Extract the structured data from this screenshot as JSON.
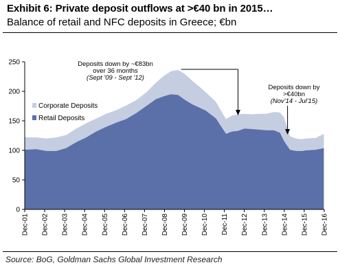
{
  "title": "Exhibit 6: Private deposit outflows at >€40 bn in 2015…",
  "subtitle": "Balance of retail and NFC deposits in Greece; €bn",
  "source": "Source: BoG, Goldman Sachs Global Investment Research",
  "chart_data": {
    "type": "area",
    "stacked": true,
    "ylim": [
      0,
      250
    ],
    "yticks": [
      0,
      50,
      100,
      150,
      200,
      250
    ],
    "xlim": [
      2001.917,
      2016.917
    ],
    "xtick_labels": [
      "Dec-01",
      "Dec-02",
      "Dec-03",
      "Dec-04",
      "Dec-05",
      "Dec-06",
      "Dec-07",
      "Dec-08",
      "Dec-09",
      "Dec-10",
      "Dec-11",
      "Dec-12",
      "Dec-13",
      "Dec-14",
      "Dec-15",
      "Dec-16"
    ],
    "legend": {
      "position": "left",
      "entries": [
        "Corporate Deposits",
        "Retail Deposits"
      ]
    },
    "colors": {
      "retail": "#5b70a8",
      "corporate": "#c5cde1",
      "axis": "#000000"
    },
    "series": [
      {
        "name": "Retail Deposits",
        "x": [
          2001.917,
          2002.5,
          2003.0,
          2003.5,
          2004.0,
          2004.5,
          2005.0,
          2005.5,
          2006.0,
          2006.5,
          2007.0,
          2007.5,
          2008.0,
          2008.5,
          2008.917,
          2009.25,
          2009.6,
          2009.917,
          2010.3,
          2010.7,
          2011.0,
          2011.5,
          2011.8,
          2012.0,
          2012.3,
          2012.6,
          2012.917,
          2013.3,
          2013.7,
          2014.0,
          2014.4,
          2014.7,
          2014.9,
          2015.2,
          2015.5,
          2015.8,
          2016.0,
          2016.5,
          2016.9
        ],
        "values": [
          101,
          102,
          99,
          99,
          104,
          114,
          122,
          132,
          140,
          147,
          153,
          163,
          175,
          187,
          192,
          195,
          194,
          186,
          178,
          172,
          167,
          154,
          138,
          128,
          132,
          133,
          137,
          136,
          135,
          134,
          134,
          130,
          116,
          101,
          99,
          99,
          100,
          101,
          104
        ]
      },
      {
        "name": "Corporate Deposits",
        "x": [
          2001.917,
          2002.5,
          2003.0,
          2003.5,
          2004.0,
          2004.5,
          2005.0,
          2005.5,
          2006.0,
          2006.5,
          2007.0,
          2007.5,
          2008.0,
          2008.5,
          2008.917,
          2009.25,
          2009.6,
          2009.917,
          2010.3,
          2010.7,
          2011.0,
          2011.5,
          2011.8,
          2012.0,
          2012.3,
          2012.6,
          2012.917,
          2013.3,
          2013.7,
          2014.0,
          2014.4,
          2014.7,
          2014.9,
          2015.2,
          2015.5,
          2015.8,
          2016.0,
          2016.5,
          2016.9
        ],
        "values": [
          21,
          20,
          21,
          23,
          22,
          23,
          24,
          22,
          22,
          21,
          23,
          22,
          23,
          28,
          35,
          39,
          42,
          44,
          40,
          35,
          31,
          28,
          26,
          25,
          27,
          28,
          25,
          25,
          27,
          28,
          31,
          34,
          40,
          23,
          21,
          20,
          20,
          20,
          24
        ]
      }
    ],
    "annotations": [
      {
        "lines": [
          "Deposits down by ~€83bn",
          "over 36 months"
        ],
        "note": "(Sept '09 - Sept '12)",
        "from": 2009.75,
        "to": 2012.75
      },
      {
        "lines": [
          "Deposits down by",
          ">€40bn"
        ],
        "note": "(Nov'14 - Jul'15)",
        "from": 2014.83,
        "to": 2015.5
      }
    ]
  }
}
